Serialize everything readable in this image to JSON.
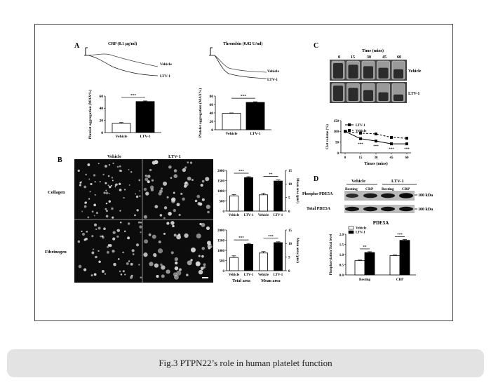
{
  "panel_labels": {
    "A": "A",
    "B": "B",
    "C": "C",
    "D": "D"
  },
  "panel_a": {
    "trace_left": {
      "title": "CRP (0.1 μg/ml)",
      "label_top": "Vehicle",
      "label_bottom": "LTV-1"
    },
    "trace_right": {
      "title": "Thrombin (0.02 U/ml)",
      "label_top": "Vehicle",
      "label_bottom": "LTV-1"
    }
  },
  "panel_b": {
    "col_headers": [
      "Vehicle",
      "LTV-1"
    ],
    "row_labels": [
      "Collagen",
      "Fibrinogen"
    ]
  },
  "panel_c": {
    "time_header": "Time (mins)",
    "time_ticks": [
      "0",
      "15",
      "30",
      "45",
      "60"
    ],
    "strip_labels": [
      "Vehicle",
      "LTV-1"
    ]
  },
  "panel_d": {
    "group_headers": [
      "Vehicle",
      "LTV-1"
    ],
    "lane_labels": [
      "Resting",
      "CRP",
      "Resting",
      "CRP"
    ],
    "blot_labels": [
      "Phospho-PDE5A",
      "Total PDE5A"
    ],
    "kda_labels": [
      "100 kDa",
      "100 kDa"
    ]
  },
  "chart_data": [
    {
      "id": "a-left-bar",
      "type": "bar",
      "categories": [
        "Vehicle",
        "LTV-1"
      ],
      "values": [
        15,
        51
      ],
      "errors": [
        1.5,
        1
      ],
      "ylabel": "Platelet aggregation (MAX%)",
      "ylim": [
        0,
        60
      ],
      "yticks": [
        "0",
        "20",
        "40",
        "60"
      ],
      "significance": [
        "***"
      ],
      "colors": [
        "#ffffff",
        "#000000"
      ]
    },
    {
      "id": "a-right-bar",
      "type": "bar",
      "categories": [
        "Vehicle",
        "LTV-1"
      ],
      "values": [
        39,
        65
      ],
      "errors": [
        1,
        1.5
      ],
      "ylabel": "Platelet aggregation (MAX%)",
      "ylim": [
        0,
        80
      ],
      "yticks": [
        "0",
        "20",
        "40",
        "60",
        "80"
      ],
      "significance": [
        "***"
      ],
      "colors": [
        "#ffffff",
        "#000000"
      ]
    },
    {
      "id": "b-collagen-bar",
      "type": "bar",
      "categories": [
        "Vehicle",
        "LTV-1",
        "Vehicle",
        "LTV-1"
      ],
      "values": [
        750,
        1650,
        800,
        1480
      ],
      "errors": [
        60,
        40,
        70,
        50
      ],
      "ylabel": "Total area (μm²)",
      "ylabel_right": "Mean area (μm²)",
      "ylim": [
        0,
        2000
      ],
      "yticks": [
        "0",
        "500",
        "1000",
        "1500",
        "2000"
      ],
      "yticks_right": [
        "0",
        "5",
        "10",
        "15"
      ],
      "significance": [
        "***",
        "**"
      ],
      "colors": [
        "#ffffff",
        "#000000",
        "#ffffff",
        "#000000"
      ]
    },
    {
      "id": "b-fibrinogen-bar",
      "type": "bar",
      "categories": [
        "Vehicle",
        "LTV-1",
        "Vehicle",
        "LTV-1"
      ],
      "values": [
        650,
        1300,
        870,
        1380
      ],
      "errors": [
        80,
        40,
        70,
        40
      ],
      "ylabel": "Total area (μm²)",
      "ylabel_right": "Mean area (μm²)",
      "ylim": [
        0,
        2000
      ],
      "yticks": [
        "0",
        "500",
        "1000",
        "1500",
        "2000"
      ],
      "yticks_right": [
        "0",
        "5",
        "10",
        "15"
      ],
      "significance": [
        "***",
        "***"
      ],
      "group_labels": [
        "Total area",
        "Mean area"
      ],
      "colors": [
        "#ffffff",
        "#000000",
        "#ffffff",
        "#000000"
      ]
    },
    {
      "id": "c-clot-line",
      "type": "line",
      "x": [
        0,
        15,
        30,
        45,
        60
      ],
      "series": [
        {
          "name": "LTV-1",
          "values": [
            100,
            66,
            55,
            42,
            42
          ],
          "style": "solid"
        },
        {
          "name": "Vehicle",
          "values": [
            100,
            92,
            88,
            72,
            68
          ],
          "style": "dashed"
        }
      ],
      "xlabel": "Times (mins)",
      "ylabel": "Clot volume (%)",
      "xlim": [
        0,
        60
      ],
      "ylim": [
        0,
        150
      ],
      "xticks": [
        "0",
        "15",
        "30",
        "45",
        "60"
      ],
      "yticks": [
        "0",
        "50",
        "100",
        "150"
      ],
      "significance": [
        "***",
        "***",
        "***",
        "***"
      ]
    },
    {
      "id": "d-pde5a-bar",
      "type": "bar",
      "title": "PDE5A",
      "categories": [
        "Resting",
        "CRP"
      ],
      "series": [
        {
          "name": "Vehicle",
          "values": [
            0.7,
            0.95
          ],
          "errors": [
            0.03,
            0.03
          ]
        },
        {
          "name": "LTV-1",
          "values": [
            1.1,
            1.7
          ],
          "errors": [
            0.04,
            0.04
          ]
        }
      ],
      "ylabel": "Phosphorylation/Total level",
      "ylim": [
        0,
        2.0
      ],
      "yticks": [
        "0.0",
        "0.5",
        "1.0",
        "1.5",
        "2.0"
      ],
      "significance": [
        "**",
        "***"
      ]
    }
  ],
  "caption": "Fig.3 PTPN22’s role in human platelet function"
}
